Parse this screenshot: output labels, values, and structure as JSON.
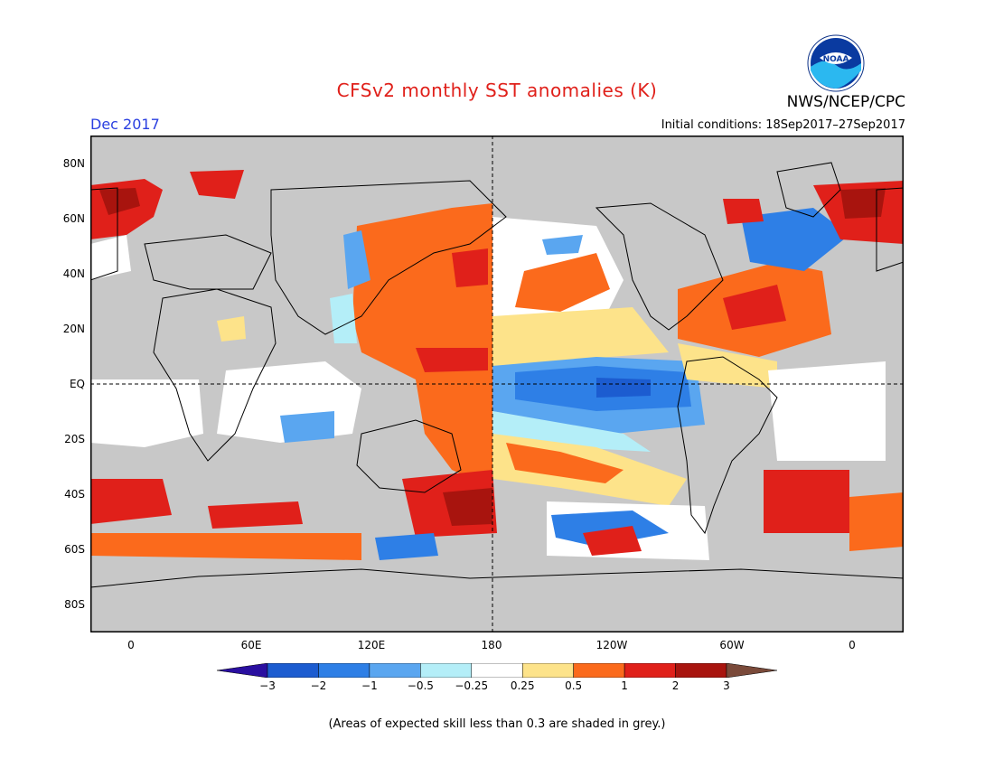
{
  "header": {
    "title": "CFSv2 monthly SST anomalies (K)",
    "month": "Dec 2017",
    "agency": "NWS/NCEP/CPC",
    "initial_conditions": "Initial conditions: 18Sep2017–27Sep2017",
    "logo_text": "NOAA"
  },
  "map": {
    "lat_labels": [
      "80N",
      "60N",
      "40N",
      "20N",
      "EQ",
      "20S",
      "40S",
      "60S",
      "80S"
    ],
    "lon_labels": [
      "0",
      "60E",
      "120E",
      "180",
      "120W",
      "60W",
      "0"
    ],
    "colors": {
      "land": "#c8c8c8",
      "ocean_neutral": "#ffffff",
      "low_skill": "#c8c8c8"
    }
  },
  "colorbar": {
    "ticks": [
      "−3",
      "−2",
      "−1",
      "−0.5",
      "−0.25",
      "0.25",
      "0.5",
      "1",
      "2",
      "3"
    ],
    "colors": [
      "#2a0fa0",
      "#1c5cd0",
      "#2e7fe6",
      "#5aa6f0",
      "#b4eef8",
      "#ffffff",
      "#fde38a",
      "#fb6a1c",
      "#e0201a",
      "#a8140e",
      "#7a4a3a"
    ]
  },
  "footnote": "(Areas of expected skill less than 0.3 are shaded in grey.)"
}
